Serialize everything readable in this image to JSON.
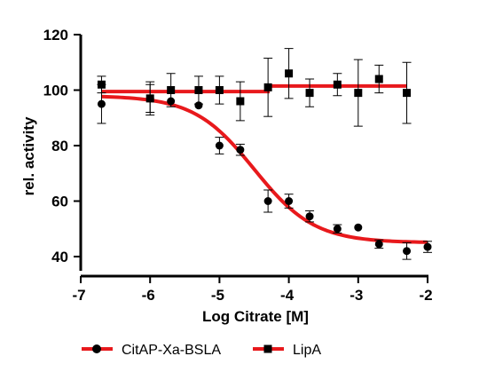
{
  "chart_data": {
    "type": "scatter",
    "xlabel": "Log Citrate [M]",
    "ylabel": "rel. activity",
    "xlim": [
      -7,
      -2
    ],
    "ylim": [
      35,
      120
    ],
    "x_ticks": [
      -7,
      -6,
      -5,
      -4,
      -3,
      -2
    ],
    "y_ticks": [
      40,
      60,
      80,
      100,
      120
    ],
    "grid": false,
    "legend_position": "bottom",
    "series": [
      {
        "name": "CitAP-Xa-BSLA",
        "marker": "circle",
        "color": "#e8191c",
        "fit": {
          "type": "sigmoid",
          "top": 98,
          "bottom": 45,
          "logIC50": -4.5,
          "hill": 1,
          "x_range": [
            -6.7,
            -2.0
          ]
        },
        "points": [
          {
            "x": -6.7,
            "y": 95,
            "err": 7
          },
          {
            "x": -6.0,
            "y": 97,
            "err": 6
          },
          {
            "x": -5.7,
            "y": 96,
            "err": 0
          },
          {
            "x": -5.3,
            "y": 94.5,
            "err": 0
          },
          {
            "x": -5.0,
            "y": 80,
            "err": 3
          },
          {
            "x": -4.7,
            "y": 78.5,
            "err": 2
          },
          {
            "x": -4.3,
            "y": 60,
            "err": 4
          },
          {
            "x": -4.0,
            "y": 60,
            "err": 2.5
          },
          {
            "x": -3.7,
            "y": 54.5,
            "err": 2
          },
          {
            "x": -3.3,
            "y": 50,
            "err": 1.5
          },
          {
            "x": -3.0,
            "y": 50.5,
            "err": 0
          },
          {
            "x": -2.7,
            "y": 44.5,
            "err": 1.5
          },
          {
            "x": -2.3,
            "y": 42,
            "err": 3
          },
          {
            "x": -2.0,
            "y": 43.5,
            "err": 2
          }
        ]
      },
      {
        "name": "LipA",
        "marker": "square",
        "color": "#e8191c",
        "fit": {
          "type": "step",
          "segments": [
            {
              "x0": -6.7,
              "x1": -4.3,
              "y": 99.5
            },
            {
              "x0": -4.3,
              "x1": -2.3,
              "y": 101.5
            }
          ]
        },
        "points": [
          {
            "x": -6.7,
            "y": 102,
            "err": 3
          },
          {
            "x": -6.0,
            "y": 97,
            "err": 5
          },
          {
            "x": -5.7,
            "y": 100,
            "err": 6
          },
          {
            "x": -5.3,
            "y": 100,
            "err": 5
          },
          {
            "x": -5.0,
            "y": 100,
            "err": 5
          },
          {
            "x": -4.7,
            "y": 96,
            "err": 7
          },
          {
            "x": -4.3,
            "y": 101,
            "err": 10.5
          },
          {
            "x": -4.0,
            "y": 106,
            "err": 9
          },
          {
            "x": -3.7,
            "y": 99,
            "err": 5
          },
          {
            "x": -3.3,
            "y": 102,
            "err": 4
          },
          {
            "x": -3.0,
            "y": 99,
            "err": 12
          },
          {
            "x": -2.7,
            "y": 104,
            "err": 5
          },
          {
            "x": -2.3,
            "y": 99,
            "err": 11
          }
        ]
      }
    ]
  }
}
